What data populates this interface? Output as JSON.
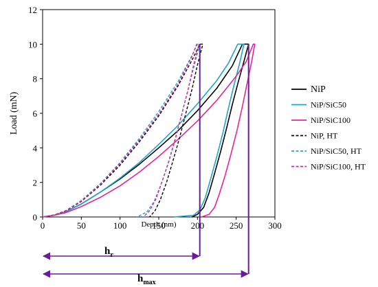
{
  "chart_data": {
    "type": "line",
    "xlabel": "Depth (nm)",
    "ylabel": "Load (mN)",
    "xlim": [
      0,
      300
    ],
    "ylim": [
      0,
      12
    ],
    "xticks": [
      "0",
      "50",
      "100",
      "150",
      "200",
      "250",
      "300"
    ],
    "yticks": [
      "0",
      "2",
      "4",
      "6",
      "8",
      "10",
      "12"
    ],
    "grid": false,
    "legend_position": "right",
    "series": [
      {
        "name": "NiP",
        "color": "#000000",
        "dash": "solid",
        "loading": [
          [
            0,
            0
          ],
          [
            15,
            0.1
          ],
          [
            30,
            0.3
          ],
          [
            50,
            0.75
          ],
          [
            75,
            1.45
          ],
          [
            100,
            2.2
          ],
          [
            125,
            3.05
          ],
          [
            150,
            4.0
          ],
          [
            175,
            5.0
          ],
          [
            200,
            6.15
          ],
          [
            225,
            7.45
          ],
          [
            245,
            8.75
          ],
          [
            258,
            10.0
          ]
        ],
        "hold": [
          [
            258,
            10.0
          ],
          [
            266,
            10.0
          ]
        ],
        "unloading": [
          [
            266,
            10.0
          ],
          [
            260,
            9.0
          ],
          [
            252,
            7.7
          ],
          [
            245,
            6.5
          ],
          [
            238,
            5.2
          ],
          [
            230,
            3.8
          ],
          [
            222,
            2.5
          ],
          [
            215,
            1.4
          ],
          [
            208,
            0.55
          ],
          [
            200,
            0.15
          ],
          [
            193,
            0
          ]
        ]
      },
      {
        "name": "NiP/SiC50",
        "color": "#1aa6c8",
        "dash": "solid",
        "loading": [
          [
            0,
            0
          ],
          [
            15,
            0.1
          ],
          [
            30,
            0.3
          ],
          [
            50,
            0.75
          ],
          [
            75,
            1.45
          ],
          [
            100,
            2.25
          ],
          [
            125,
            3.15
          ],
          [
            150,
            4.2
          ],
          [
            175,
            5.3
          ],
          [
            200,
            6.55
          ],
          [
            225,
            7.9
          ],
          [
            240,
            8.9
          ],
          [
            252,
            10.0
          ]
        ],
        "hold": [
          [
            252,
            10.0
          ],
          [
            260,
            10.0
          ]
        ],
        "unloading": [
          [
            260,
            10.0
          ],
          [
            255,
            9.0
          ],
          [
            247,
            7.6
          ],
          [
            240,
            6.3
          ],
          [
            233,
            4.9
          ],
          [
            225,
            3.5
          ],
          [
            217,
            2.2
          ],
          [
            210,
            1.1
          ],
          [
            203,
            0.4
          ],
          [
            195,
            0.1
          ],
          [
            170,
            0
          ]
        ]
      },
      {
        "name": "NiP/SiC100",
        "color": "#e8239a",
        "dash": "solid",
        "loading": [
          [
            0,
            0
          ],
          [
            15,
            0.1
          ],
          [
            30,
            0.25
          ],
          [
            50,
            0.6
          ],
          [
            75,
            1.15
          ],
          [
            100,
            1.8
          ],
          [
            125,
            2.6
          ],
          [
            150,
            3.5
          ],
          [
            175,
            4.5
          ],
          [
            200,
            5.55
          ],
          [
            225,
            6.75
          ],
          [
            250,
            8.15
          ],
          [
            263,
            9.0
          ],
          [
            272,
            10.0
          ]
        ],
        "hold": [
          [
            272,
            10.0
          ],
          [
            274,
            10.0
          ]
        ],
        "unloading": [
          [
            274,
            10.0
          ],
          [
            270,
            9.0
          ],
          [
            264,
            7.7
          ],
          [
            258,
            6.4
          ],
          [
            251,
            5.0
          ],
          [
            243,
            3.6
          ],
          [
            235,
            2.3
          ],
          [
            228,
            1.3
          ],
          [
            222,
            0.55
          ],
          [
            215,
            0.15
          ],
          [
            205,
            0
          ]
        ]
      },
      {
        "name": "NiP, HT",
        "color": "#000000",
        "dash": "dashed",
        "loading": [
          [
            0,
            0
          ],
          [
            15,
            0.12
          ],
          [
            30,
            0.35
          ],
          [
            50,
            0.9
          ],
          [
            75,
            1.85
          ],
          [
            100,
            3.0
          ],
          [
            125,
            4.35
          ],
          [
            150,
            5.85
          ],
          [
            175,
            7.6
          ],
          [
            195,
            9.25
          ],
          [
            203,
            10.0
          ]
        ],
        "hold": [
          [
            203,
            10.0
          ],
          [
            207,
            10.0
          ]
        ],
        "unloading": [
          [
            207,
            10.0
          ],
          [
            200,
            8.8
          ],
          [
            193,
            7.4
          ],
          [
            185,
            6.0
          ],
          [
            177,
            4.6
          ],
          [
            168,
            3.2
          ],
          [
            160,
            2.0
          ],
          [
            152,
            1.0
          ],
          [
            145,
            0.35
          ],
          [
            138,
            0
          ]
        ]
      },
      {
        "name": "NiP/SiC50, HT",
        "color": "#1aa6c8",
        "dash": "dashed",
        "loading": [
          [
            0,
            0
          ],
          [
            15,
            0.12
          ],
          [
            30,
            0.37
          ],
          [
            50,
            0.95
          ],
          [
            75,
            1.95
          ],
          [
            100,
            3.15
          ],
          [
            125,
            4.55
          ],
          [
            150,
            6.1
          ],
          [
            175,
            7.85
          ],
          [
            193,
            9.35
          ],
          [
            200,
            10.0
          ]
        ],
        "hold": [
          [
            200,
            10.0
          ],
          [
            203,
            10.0
          ]
        ],
        "unloading": [
          [
            203,
            10.0
          ],
          [
            196,
            8.8
          ],
          [
            188,
            7.4
          ],
          [
            180,
            6.0
          ],
          [
            171,
            4.5
          ],
          [
            162,
            3.1
          ],
          [
            153,
            1.9
          ],
          [
            144,
            0.9
          ],
          [
            135,
            0.3
          ],
          [
            122,
            0
          ]
        ]
      },
      {
        "name": "NiP/SiC100, HT",
        "color": "#e8239a",
        "dash": "dashed",
        "loading": [
          [
            0,
            0
          ],
          [
            15,
            0.12
          ],
          [
            30,
            0.36
          ],
          [
            50,
            0.92
          ],
          [
            75,
            1.9
          ],
          [
            100,
            3.1
          ],
          [
            125,
            4.45
          ],
          [
            150,
            5.95
          ],
          [
            175,
            7.7
          ],
          [
            193,
            9.3
          ],
          [
            199,
            10.0
          ]
        ],
        "hold": [
          [
            199,
            10.0
          ],
          [
            202,
            10.0
          ]
        ],
        "unloading": [
          [
            202,
            10.0
          ],
          [
            195,
            8.8
          ],
          [
            188,
            7.4
          ],
          [
            180,
            6.0
          ],
          [
            172,
            4.6
          ],
          [
            163,
            3.2
          ],
          [
            154,
            2.0
          ],
          [
            146,
            1.0
          ],
          [
            138,
            0.35
          ],
          [
            130,
            0
          ]
        ]
      }
    ],
    "annotations": {
      "hr": {
        "label": "h",
        "subscript": "r",
        "x_start": 0,
        "x_end": 203,
        "color": "#6a1b9a"
      },
      "hmax": {
        "label": "h",
        "subscript": "max",
        "x_start": 0,
        "x_end": 266,
        "color": "#6a1b9a"
      }
    }
  }
}
